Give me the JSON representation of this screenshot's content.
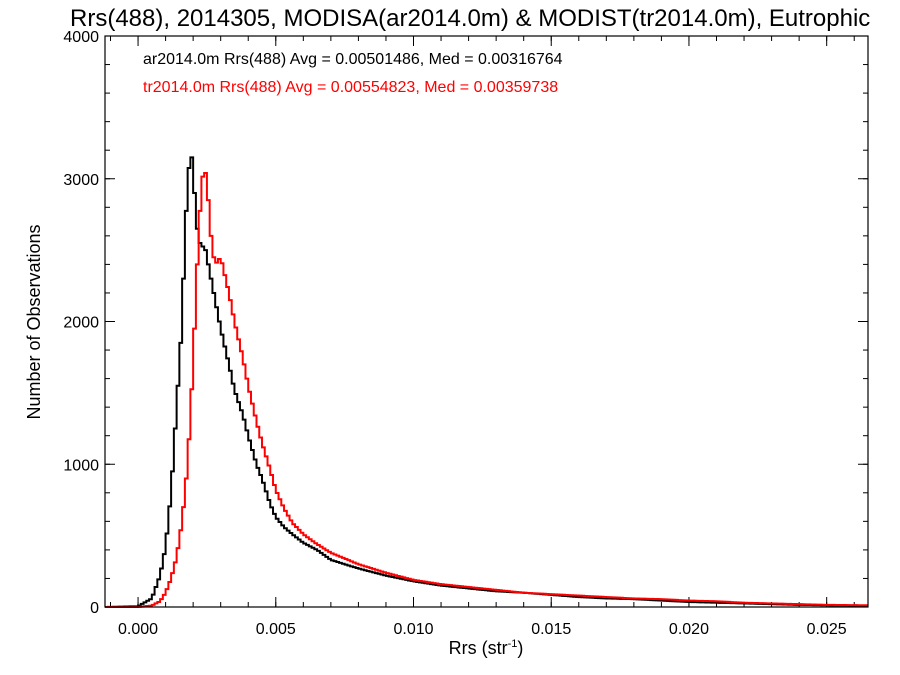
{
  "chart_data": {
    "type": "line",
    "title": "Rrs(488), 2014305, MODISA(ar2014.0m) & MODIST(tr2014.0m), Eutrophic",
    "xlabel": "Rrs (str",
    "xlabel_sup": "-1",
    "xlabel_close": ")",
    "ylabel": "Number of Observations",
    "xlim": [
      -0.0012,
      0.0265
    ],
    "ylim": [
      0,
      4000
    ],
    "x_ticks": [
      0.0,
      0.005,
      0.01,
      0.015,
      0.02,
      0.025
    ],
    "x_tick_labels": [
      "0.000",
      "0.005",
      "0.010",
      "0.015",
      "0.020",
      "0.025"
    ],
    "y_ticks": [
      0,
      1000,
      2000,
      3000,
      4000
    ],
    "y_tick_labels": [
      "0",
      "1000",
      "2000",
      "3000",
      "4000"
    ],
    "legend_position": "top-left",
    "series": [
      {
        "name": "ar2014.0m Rrs(488) Avg = 0.00501486, Med = 0.00316764",
        "color": "#000000",
        "x": [
          -0.0012,
          0.0,
          0.0005,
          0.0008,
          0.001,
          0.0012,
          0.0014,
          0.0016,
          0.0017,
          0.0018,
          0.0019,
          0.002,
          0.0021,
          0.0022,
          0.0023,
          0.0024,
          0.0025,
          0.0027,
          0.003,
          0.0033,
          0.0035,
          0.0038,
          0.004,
          0.0043,
          0.0045,
          0.0048,
          0.005,
          0.0053,
          0.0056,
          0.006,
          0.0065,
          0.007,
          0.008,
          0.009,
          0.01,
          0.011,
          0.012,
          0.013,
          0.014,
          0.015,
          0.016,
          0.017,
          0.018,
          0.019,
          0.02,
          0.021,
          0.022,
          0.023,
          0.024,
          0.025,
          0.0265
        ],
        "y": [
          0,
          5,
          60,
          220,
          420,
          800,
          1400,
          2000,
          2600,
          2950,
          3200,
          3100,
          2700,
          2600,
          2500,
          2550,
          2450,
          2250,
          1950,
          1700,
          1520,
          1350,
          1200,
          1000,
          900,
          720,
          630,
          560,
          510,
          450,
          400,
          330,
          270,
          220,
          180,
          150,
          130,
          110,
          100,
          85,
          70,
          60,
          55,
          45,
          35,
          30,
          25,
          20,
          15,
          12,
          10
        ]
      },
      {
        "name": "tr2014.0m Rrs(488) Avg = 0.00554823, Med = 0.00359738",
        "color": "#ff0000",
        "x": [
          -0.0012,
          0.0,
          0.0005,
          0.0008,
          0.001,
          0.0012,
          0.0014,
          0.0016,
          0.0018,
          0.002,
          0.0021,
          0.0022,
          0.0023,
          0.0024,
          0.0025,
          0.0026,
          0.0027,
          0.0028,
          0.003,
          0.0033,
          0.0035,
          0.0038,
          0.004,
          0.0043,
          0.0045,
          0.0048,
          0.005,
          0.0053,
          0.0056,
          0.006,
          0.0065,
          0.007,
          0.008,
          0.009,
          0.01,
          0.011,
          0.012,
          0.013,
          0.014,
          0.015,
          0.016,
          0.017,
          0.018,
          0.019,
          0.02,
          0.021,
          0.022,
          0.023,
          0.024,
          0.025,
          0.0265
        ],
        "y": [
          0,
          0,
          10,
          40,
          100,
          200,
          350,
          600,
          1000,
          1700,
          2200,
          2600,
          2950,
          3080,
          3000,
          2700,
          2500,
          2400,
          2450,
          2200,
          2000,
          1750,
          1550,
          1300,
          1150,
          960,
          820,
          690,
          590,
          510,
          440,
          380,
          300,
          240,
          190,
          160,
          140,
          120,
          100,
          90,
          80,
          70,
          60,
          55,
          45,
          40,
          30,
          25,
          20,
          15,
          12
        ]
      }
    ]
  }
}
